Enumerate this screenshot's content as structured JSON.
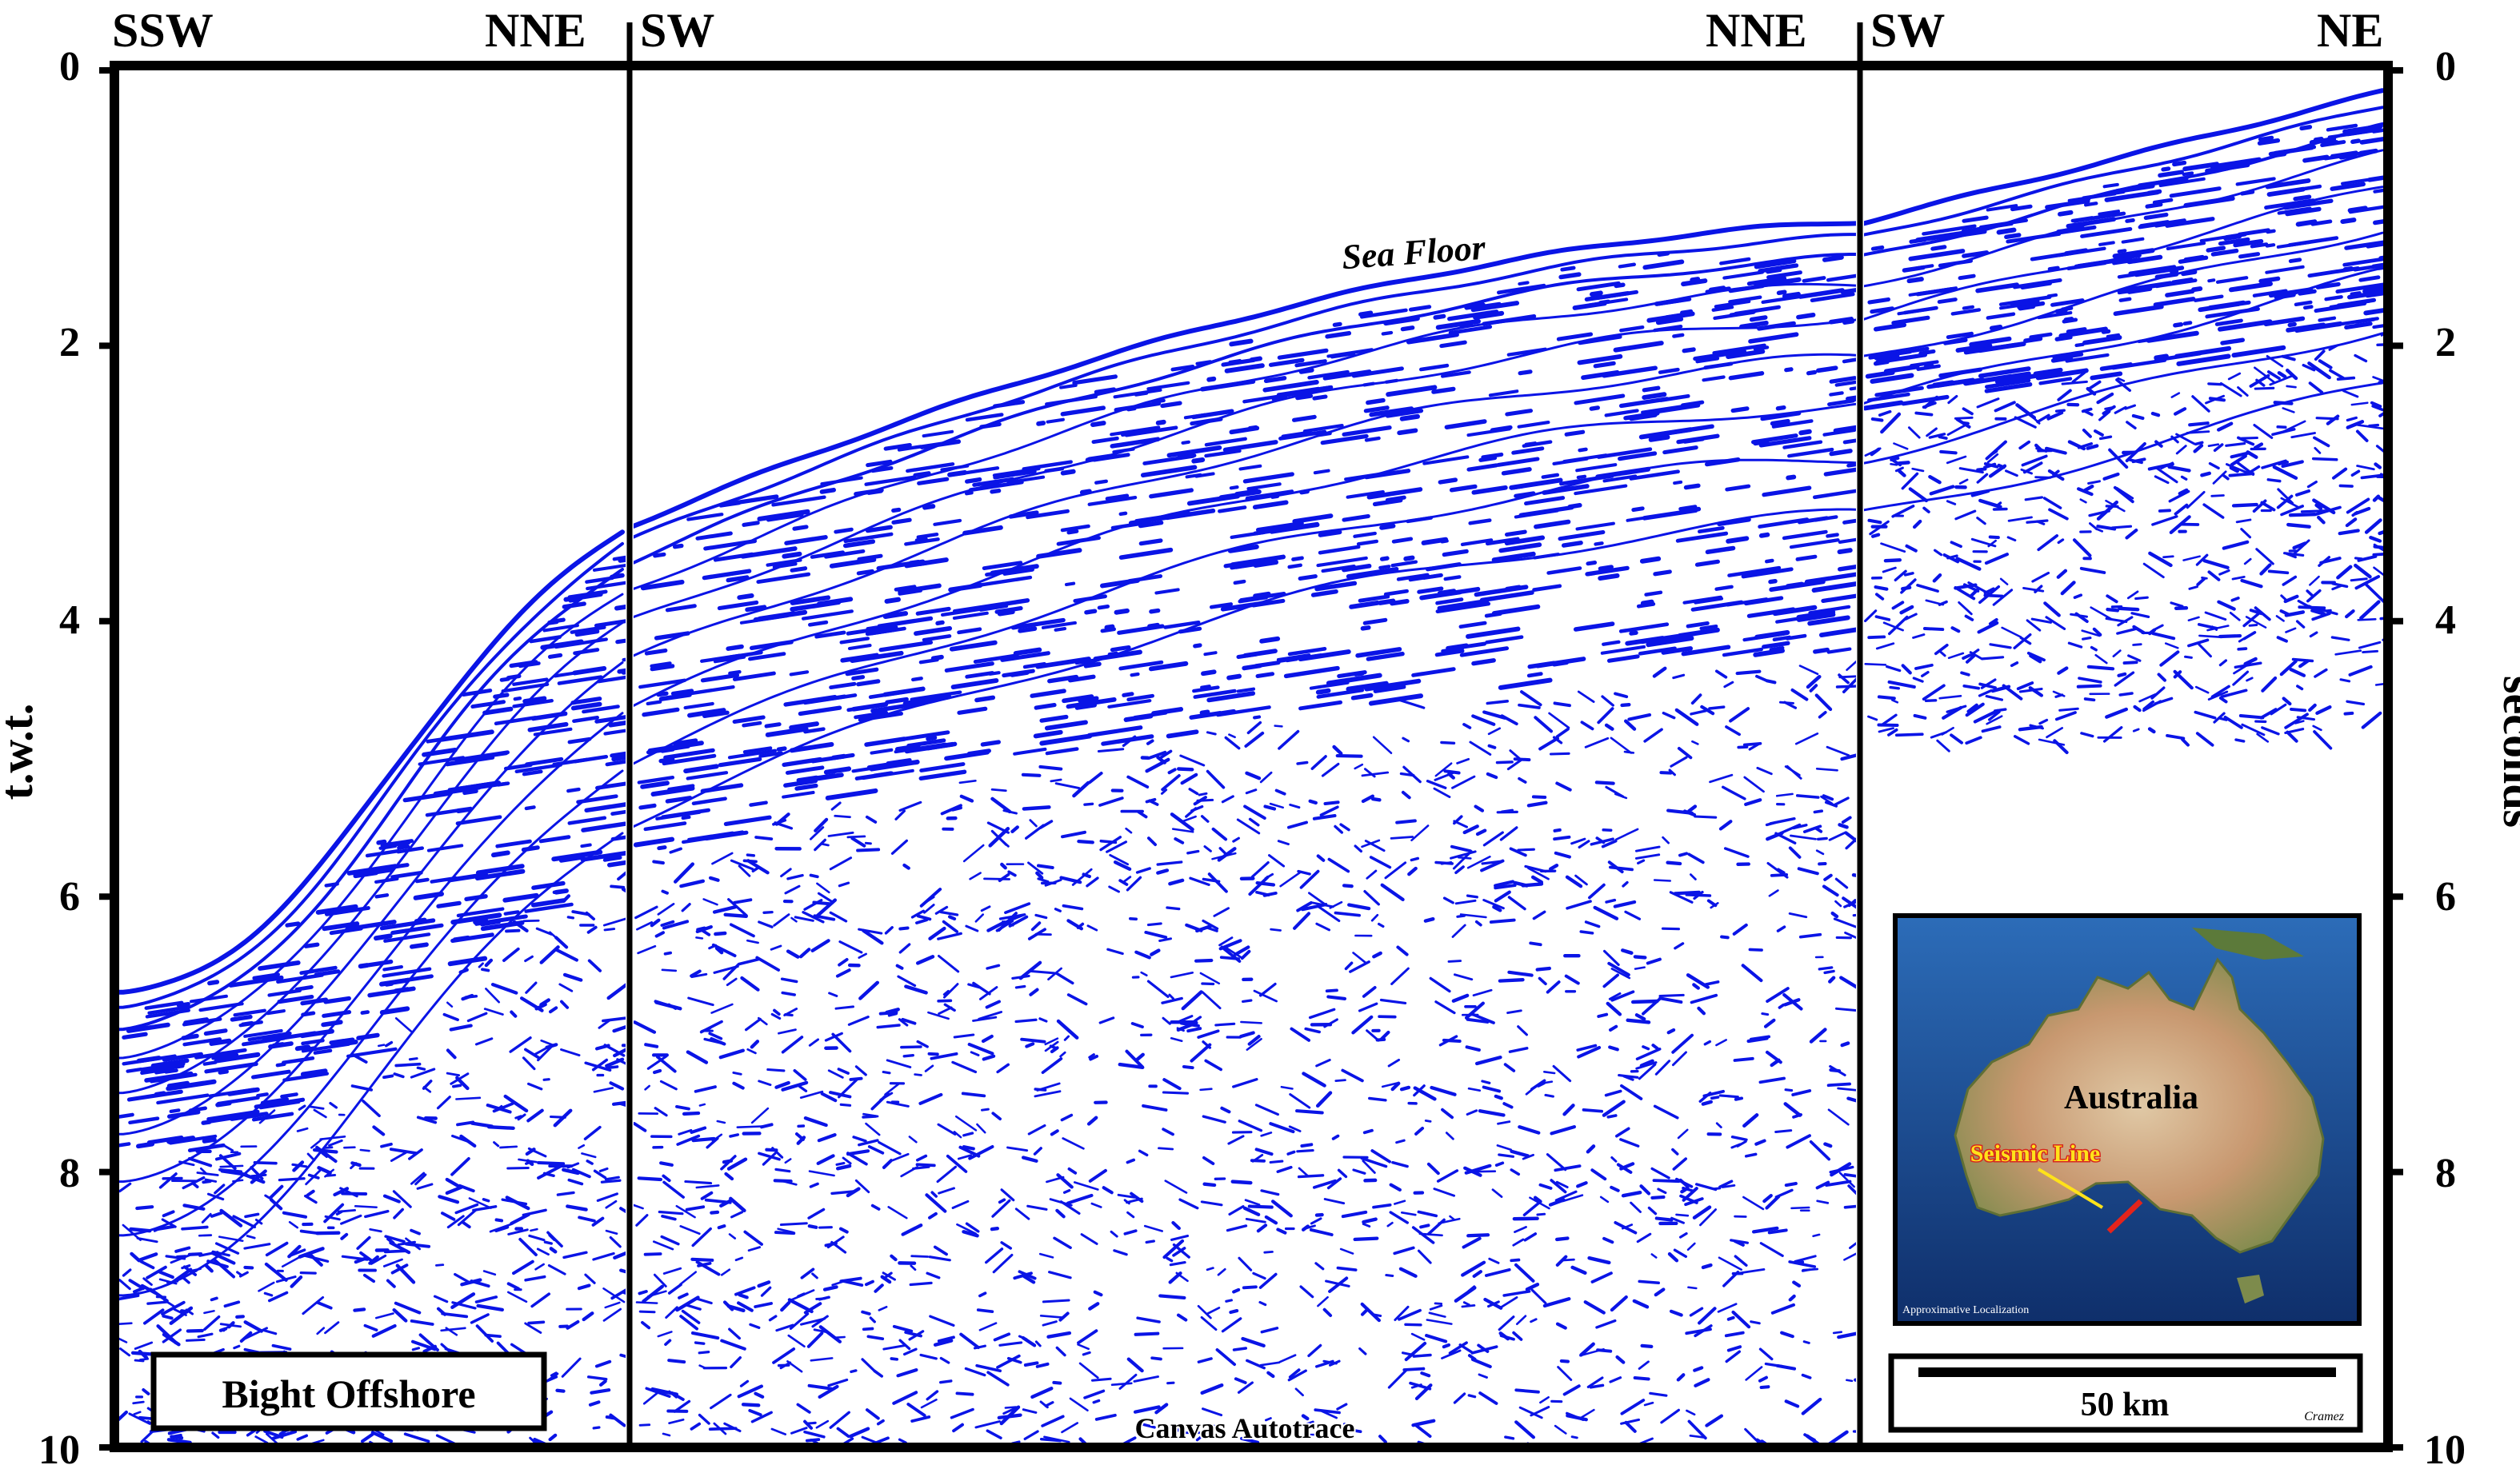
{
  "header": {
    "panels": [
      {
        "left_label": "SSW",
        "right_label": "NNE"
      },
      {
        "left_label": "SW",
        "right_label": "NNE"
      },
      {
        "left_label": "SW",
        "right_label": "NE"
      }
    ]
  },
  "axes": {
    "left_title": "t.w.t.",
    "right_title": "seconds",
    "ticks": [
      "0",
      "2",
      "4",
      "6",
      "8",
      "10"
    ]
  },
  "annotations": {
    "sea_floor": "Sea Floor",
    "canvas_label": "Canvas Autotrace",
    "title_box": "Bight Offshore",
    "scale_label": "50 km",
    "author": "Cramez"
  },
  "inset_map": {
    "continent_label": "Australia",
    "line_label": "Seismic Line",
    "footer": "Approximative Localization"
  },
  "colors": {
    "seismic": "#0a14e6",
    "frame": "#000000",
    "ocean": "#1c4f9a",
    "land": "#c9a27a",
    "seismic_line": "#e4241b",
    "line_label_fill": "#ffe21a",
    "line_label_outline": "#d7261e"
  }
}
